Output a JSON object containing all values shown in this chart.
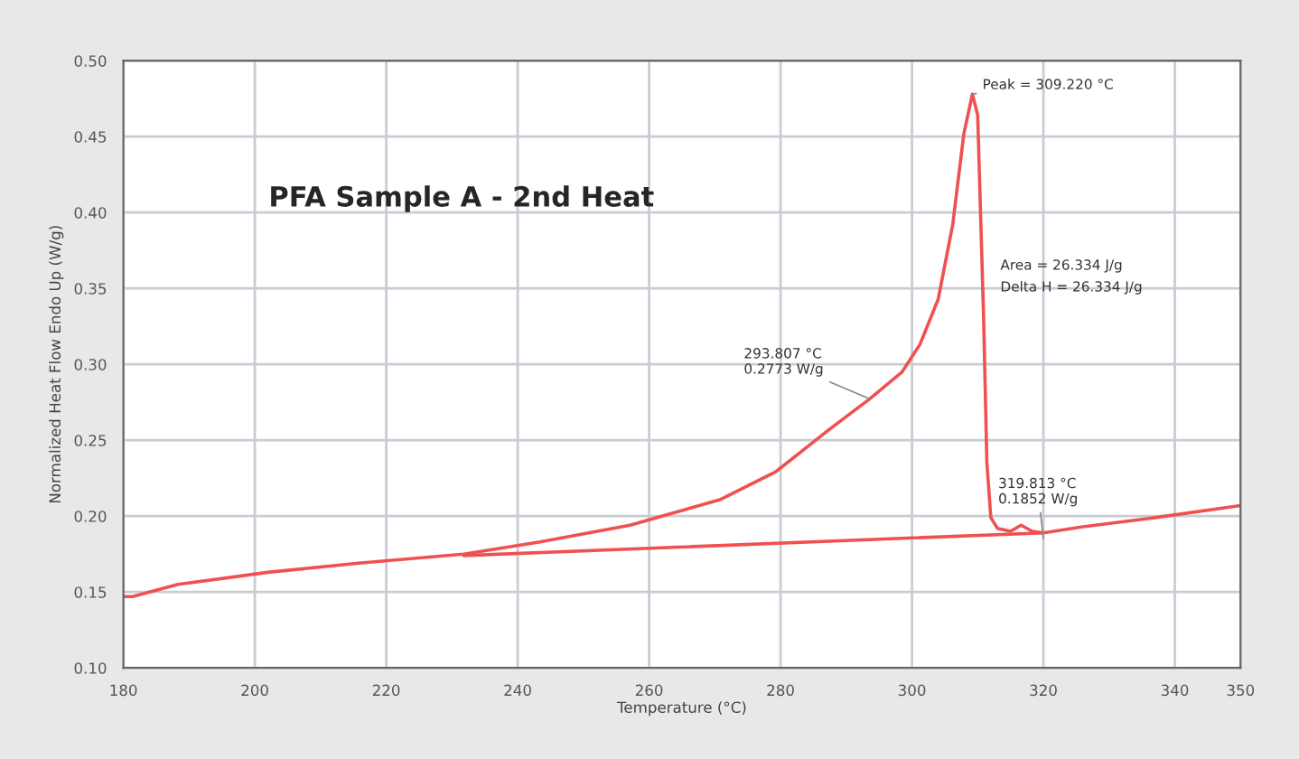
{
  "chart_data": {
    "type": "line",
    "title": "PFA Sample A - 2nd Heat",
    "xlabel": "Temperature (°C)",
    "ylabel": "Normalized Heat Flow Endo Up (W/g)",
    "series": [
      {
        "color": "#f05050",
        "x": [
          180,
          181.4,
          188.3,
          202,
          215.8,
          231.8,
          243.4,
          257.1,
          270.9,
          279.2,
          287.4,
          293.5,
          298.5,
          301.2,
          304,
          306.2,
          307.9,
          309.2,
          310,
          310.9,
          311.4,
          312,
          313,
          315,
          316.6,
          318.3,
          320,
          326,
          337,
          350
        ],
        "values": [
          0.147,
          0.147,
          0.155,
          0.163,
          0.169,
          0.175,
          0.183,
          0.194,
          0.211,
          0.229,
          0.257,
          0.277,
          0.295,
          0.313,
          0.343,
          0.392,
          0.452,
          0.478,
          0.464,
          0.331,
          0.235,
          0.199,
          0.192,
          0.19,
          0.194,
          0.19,
          0.189,
          0.193,
          0.199,
          0.207
        ]
      },
      {
        "color": "#f05050",
        "x": [
          231.8,
          320
        ],
        "values": [
          0.174,
          0.189
        ]
      }
    ],
    "annotations": [
      {
        "text": "Peak = 309.220 °C",
        "x": 309.2,
        "y": 0.478
      },
      {
        "text": "293.807 °C\n0.2773 W/g",
        "x": 293.5,
        "y": 0.2773
      },
      {
        "text": "319.813 °C\n0.1852 W/g",
        "x": 320,
        "y": 0.1852
      },
      "Area = 26.334 J/g\nDelta H = 26.334 J/g"
    ],
    "xlim": [
      180,
      350
    ],
    "xticks": [
      180,
      200,
      220,
      240,
      260,
      280,
      300,
      320,
      340,
      350
    ],
    "ylim": [
      0.1,
      0.5
    ],
    "yticks": [
      {
        "value": 0.1,
        "label": "0.10"
      },
      {
        "value": 0.15,
        "label": "0.15"
      },
      {
        "value": 0.2,
        "label": "0.20"
      },
      {
        "value": 0.25,
        "label": "0.25"
      },
      {
        "value": 0.3,
        "label": "0.30"
      },
      {
        "value": 0.35,
        "label": "0.35"
      },
      {
        "value": 0.4,
        "label": "0.40"
      },
      {
        "value": 0.45,
        "label": "0.45"
      },
      {
        "value": 0.5,
        "label": "0.50"
      }
    ],
    "grid": true,
    "marker": "none",
    "line_style": "solid",
    "legend": false
  }
}
